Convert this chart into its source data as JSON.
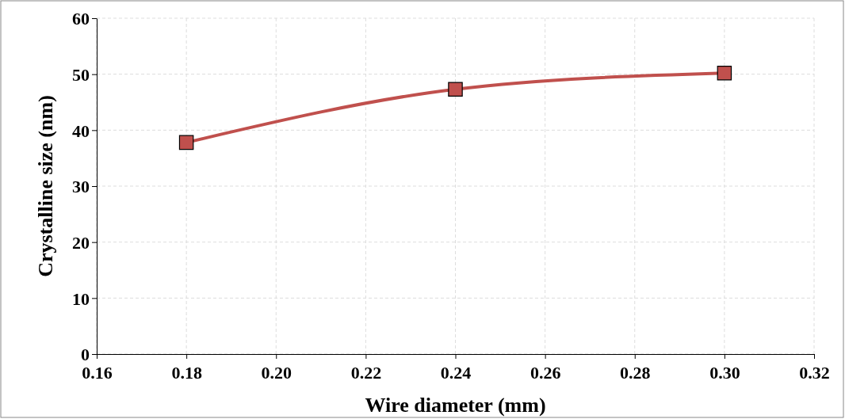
{
  "chart_data": {
    "type": "line",
    "xlabel": "Wire diameter (mm)",
    "ylabel": "Crystalline size (nm)",
    "x": [
      0.18,
      0.24,
      0.3
    ],
    "series": [
      {
        "color": "#c0504d",
        "values": [
          37.8,
          47.3,
          50.2
        ]
      }
    ],
    "xlim": [
      0.16,
      0.32
    ],
    "xticks": [
      {
        "value": 0.16,
        "label": "0.16"
      },
      {
        "value": 0.18,
        "label": "0.18"
      },
      {
        "value": 0.2,
        "label": "0.20"
      },
      {
        "value": 0.22,
        "label": "0.22"
      },
      {
        "value": 0.24,
        "label": "0.24"
      },
      {
        "value": 0.26,
        "label": "0.26"
      },
      {
        "value": 0.28,
        "label": "0.28"
      },
      {
        "value": 0.3,
        "label": "0.30"
      },
      {
        "value": 0.32,
        "label": "0.32"
      }
    ],
    "ylim": [
      0,
      60
    ],
    "yticks": [
      0,
      10,
      20,
      30,
      40,
      50,
      60
    ],
    "grid": true,
    "marker": "square",
    "line_style": "solid"
  }
}
